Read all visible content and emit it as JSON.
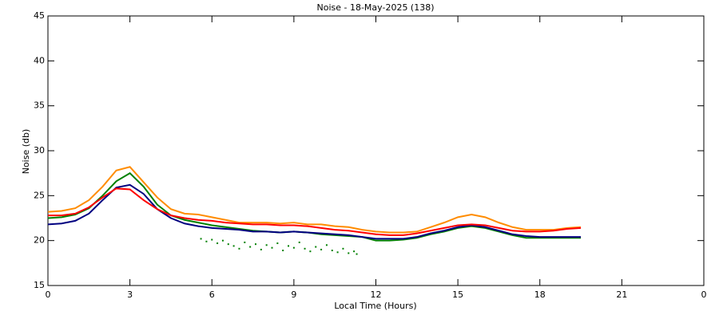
{
  "chart_data": {
    "type": "line",
    "title": "Noise - 18-May-2025 (138)",
    "x_label": "Local Time (Hours)",
    "y_label": "Noise (db)",
    "x": [
      0,
      0.5,
      1,
      1.5,
      2,
      2.5,
      3,
      3.5,
      4,
      4.5,
      5,
      5.5,
      6,
      6.5,
      7,
      7.5,
      8,
      8.5,
      9,
      9.5,
      10,
      10.5,
      11,
      11.5,
      12,
      12.5,
      13,
      13.5,
      14,
      14.5,
      15,
      15.5,
      16,
      16.5,
      17,
      17.5,
      18,
      18.5,
      19,
      19.5
    ],
    "series": [
      {
        "color": "#ff8c00",
        "values": [
          23.2,
          23.3,
          23.6,
          24.5,
          26,
          27.8,
          28.2,
          26.5,
          24.8,
          23.5,
          23,
          22.9,
          22.6,
          22.3,
          22,
          22,
          22,
          21.9,
          22,
          21.8,
          21.8,
          21.6,
          21.5,
          21.2,
          21,
          20.9,
          20.9,
          21,
          21.5,
          22,
          22.6,
          22.9,
          22.6,
          22,
          21.5,
          21.2,
          21.2,
          21.2,
          21.4,
          21.5
        ]
      },
      {
        "color": "#008000",
        "values": [
          22.5,
          22.6,
          22.9,
          23.6,
          25,
          26.6,
          27.5,
          26,
          24,
          22.8,
          22.3,
          22,
          21.7,
          21.5,
          21.3,
          21.1,
          21,
          20.9,
          21,
          20.9,
          20.7,
          20.6,
          20.5,
          20.4,
          20,
          20,
          20.1,
          20.3,
          20.7,
          21,
          21.4,
          21.6,
          21.4,
          21,
          20.6,
          20.3,
          20.3,
          20.3,
          20.3,
          20.3
        ]
      },
      {
        "color": "#000080",
        "values": [
          21.8,
          21.9,
          22.2,
          23,
          24.5,
          25.9,
          26.2,
          25.2,
          23.5,
          22.5,
          21.9,
          21.6,
          21.4,
          21.3,
          21.2,
          21,
          21,
          20.9,
          21,
          20.9,
          20.8,
          20.7,
          20.6,
          20.4,
          20.2,
          20.2,
          20.2,
          20.4,
          20.8,
          21.1,
          21.5,
          21.7,
          21.5,
          21.1,
          20.7,
          20.5,
          20.4,
          20.4,
          20.4,
          20.4
        ]
      },
      {
        "color": "#ff0000",
        "values": [
          22.8,
          22.8,
          23,
          23.7,
          24.8,
          25.8,
          25.7,
          24.5,
          23.5,
          22.8,
          22.5,
          22.3,
          22.2,
          22,
          21.9,
          21.8,
          21.8,
          21.7,
          21.7,
          21.6,
          21.4,
          21.2,
          21.1,
          20.9,
          20.7,
          20.6,
          20.6,
          20.8,
          21.1,
          21.4,
          21.7,
          21.8,
          21.7,
          21.4,
          21.1,
          21,
          21,
          21.1,
          21.3,
          21.4
        ]
      }
    ],
    "scatter": {
      "color": "#008000",
      "x": [
        5.6,
        5.8,
        6,
        6.2,
        6.4,
        6.6,
        6.8,
        7,
        7.2,
        7.4,
        7.6,
        7.8,
        8,
        8.2,
        8.4,
        8.6,
        8.8,
        9,
        9.2,
        9.4,
        9.6,
        9.8,
        10,
        10.2,
        10.4,
        10.6,
        10.8,
        11,
        11.2,
        11.3
      ],
      "values": [
        20.2,
        19.9,
        20.1,
        19.7,
        20,
        19.6,
        19.4,
        19.1,
        19.8,
        19.3,
        19.6,
        19,
        19.5,
        19.2,
        19.7,
        18.9,
        19.4,
        19.2,
        19.8,
        19.1,
        18.8,
        19.3,
        19,
        19.5,
        18.9,
        18.7,
        19.1,
        18.6,
        18.8,
        18.5
      ]
    },
    "xlim": [
      0,
      24
    ],
    "xticks": [
      0,
      3,
      6,
      9,
      12,
      15,
      18,
      21,
      {
        "value": 24,
        "label": "0"
      }
    ],
    "ylim": [
      15,
      45
    ],
    "yticks": [
      15,
      20,
      25,
      30,
      35,
      40,
      45
    ]
  }
}
